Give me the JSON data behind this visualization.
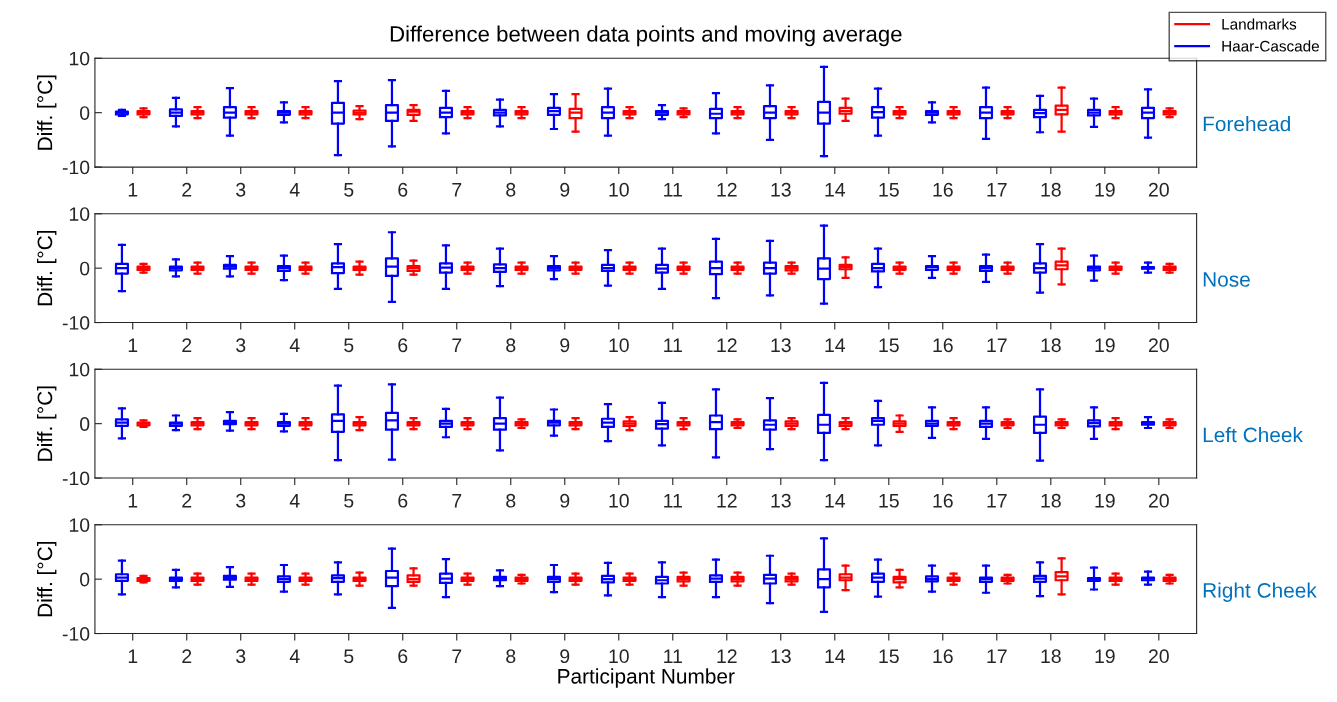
{
  "chart_data": [
    {
      "type": "box",
      "title": "Difference between data points and moving average",
      "ylabel": "Diff. [°C]",
      "annotations": [
        "Forehead"
      ],
      "categories": [
        "1",
        "2",
        "3",
        "4",
        "5",
        "6",
        "7",
        "8",
        "9",
        "10",
        "11",
        "12",
        "13",
        "14",
        "15",
        "16",
        "17",
        "18",
        "19",
        "20"
      ],
      "ylim": [
        -10,
        10
      ],
      "yticks": [
        -10,
        0,
        10
      ],
      "grid": false,
      "legend": "top right",
      "series": [
        {
          "name": "Haar-Cascade",
          "color": "#0000ff",
          "boxes": [
            {
              "low": -0.6,
              "q1": -0.3,
              "median": 0,
              "q3": 0.2,
              "high": 0.5
            },
            {
              "low": -2.5,
              "q1": -0.6,
              "median": 0,
              "q3": 0.6,
              "high": 2.7
            },
            {
              "low": -4.2,
              "q1": -0.9,
              "median": 0,
              "q3": 1.0,
              "high": 4.5
            },
            {
              "low": -1.8,
              "q1": -0.4,
              "median": 0,
              "q3": 0.3,
              "high": 1.9
            },
            {
              "low": -7.8,
              "q1": -2.0,
              "median": 0,
              "q3": 1.8,
              "high": 5.8
            },
            {
              "low": -6.2,
              "q1": -1.5,
              "median": 0,
              "q3": 1.4,
              "high": 6.0
            },
            {
              "low": -3.8,
              "q1": -0.8,
              "median": 0,
              "q3": 0.9,
              "high": 4.0
            },
            {
              "low": -2.5,
              "q1": -0.5,
              "median": 0,
              "q3": 0.5,
              "high": 2.4
            },
            {
              "low": -3.0,
              "q1": -0.4,
              "median": 0.3,
              "q3": 0.9,
              "high": 3.4
            },
            {
              "low": -4.2,
              "q1": -1.0,
              "median": 0,
              "q3": 1.0,
              "high": 4.4
            },
            {
              "low": -1.2,
              "q1": -0.4,
              "median": 0,
              "q3": 0.3,
              "high": 1.4
            },
            {
              "low": -3.8,
              "q1": -1.0,
              "median": -0.2,
              "q3": 0.7,
              "high": 3.6
            },
            {
              "low": -5.0,
              "q1": -1.0,
              "median": 0,
              "q3": 1.2,
              "high": 5.0
            },
            {
              "low": -8.0,
              "q1": -2.0,
              "median": 0,
              "q3": 2.0,
              "high": 8.4
            },
            {
              "low": -4.2,
              "q1": -0.9,
              "median": 0.1,
              "q3": 1.0,
              "high": 4.4
            },
            {
              "low": -1.8,
              "q1": -0.4,
              "median": 0,
              "q3": 0.3,
              "high": 1.9
            },
            {
              "low": -4.8,
              "q1": -1.0,
              "median": 0,
              "q3": 1.0,
              "high": 4.6
            },
            {
              "low": -3.6,
              "q1": -0.8,
              "median": -0.1,
              "q3": 0.5,
              "high": 3.1
            },
            {
              "low": -2.6,
              "q1": -0.5,
              "median": 0,
              "q3": 0.5,
              "high": 2.6
            },
            {
              "low": -4.6,
              "q1": -1.0,
              "median": 0,
              "q3": 0.9,
              "high": 4.3
            }
          ]
        },
        {
          "name": "Landmarks",
          "color": "#ff0000",
          "boxes": [
            {
              "low": -0.8,
              "q1": -0.3,
              "median": 0,
              "q3": 0.3,
              "high": 0.8
            },
            {
              "low": -1,
              "q1": -0.3,
              "median": 0,
              "q3": 0.3,
              "high": 1
            },
            {
              "low": -1,
              "q1": -0.3,
              "median": 0,
              "q3": 0.3,
              "high": 1
            },
            {
              "low": -1,
              "q1": -0.3,
              "median": 0,
              "q3": 0.3,
              "high": 1
            },
            {
              "low": -1.2,
              "q1": -0.3,
              "median": 0,
              "q3": 0.4,
              "high": 1.2
            },
            {
              "low": -1.5,
              "q1": -0.4,
              "median": 0.2,
              "q3": 0.5,
              "high": 1.4
            },
            {
              "low": -1,
              "q1": -0.3,
              "median": 0,
              "q3": 0.3,
              "high": 1
            },
            {
              "low": -1,
              "q1": -0.3,
              "median": 0,
              "q3": 0.3,
              "high": 1
            },
            {
              "low": -3.5,
              "q1": -1.0,
              "median": 0,
              "q3": 0.7,
              "high": 3.4
            },
            {
              "low": -1,
              "q1": -0.3,
              "median": 0,
              "q3": 0.3,
              "high": 1
            },
            {
              "low": -0.8,
              "q1": -0.3,
              "median": 0,
              "q3": 0.3,
              "high": 0.8
            },
            {
              "low": -1,
              "q1": -0.3,
              "median": 0,
              "q3": 0.3,
              "high": 1
            },
            {
              "low": -1,
              "q1": -0.3,
              "median": 0,
              "q3": 0.3,
              "high": 1
            },
            {
              "low": -1.5,
              "q1": -0.2,
              "median": 0.3,
              "q3": 0.9,
              "high": 2.6
            },
            {
              "low": -1,
              "q1": -0.3,
              "median": 0,
              "q3": 0.3,
              "high": 1
            },
            {
              "low": -1,
              "q1": -0.3,
              "median": 0,
              "q3": 0.3,
              "high": 1
            },
            {
              "low": -1,
              "q1": -0.3,
              "median": 0,
              "q3": 0.3,
              "high": 1
            },
            {
              "low": -3.5,
              "q1": -0.3,
              "median": 0.5,
              "q3": 1.3,
              "high": 4.6
            },
            {
              "low": -1,
              "q1": -0.3,
              "median": 0,
              "q3": 0.3,
              "high": 1
            },
            {
              "low": -0.8,
              "q1": -0.3,
              "median": 0,
              "q3": 0.3,
              "high": 0.8
            }
          ]
        }
      ]
    },
    {
      "type": "box",
      "ylabel": "Diff. [°C]",
      "annotations": [
        "Nose"
      ],
      "categories": [
        "1",
        "2",
        "3",
        "4",
        "5",
        "6",
        "7",
        "8",
        "9",
        "10",
        "11",
        "12",
        "13",
        "14",
        "15",
        "16",
        "17",
        "18",
        "19",
        "20"
      ],
      "ylim": [
        -10,
        10
      ],
      "yticks": [
        -10,
        0,
        10
      ],
      "grid": false,
      "series": [
        {
          "color": "#0000ff",
          "boxes": [
            {
              "low": -4.2,
              "q1": -1,
              "median": 0,
              "q3": 0.8,
              "high": 4.3
            },
            {
              "low": -1.5,
              "q1": -0.4,
              "median": 0,
              "q3": 0.3,
              "high": 1.6
            },
            {
              "low": -1.5,
              "q1": -0.1,
              "median": 0.3,
              "q3": 0.6,
              "high": 2.2
            },
            {
              "low": -2.2,
              "q1": -0.5,
              "median": 0,
              "q3": 0.4,
              "high": 2.3
            },
            {
              "low": -3.8,
              "q1": -0.9,
              "median": 0.2,
              "q3": 0.9,
              "high": 4.4
            },
            {
              "low": -6.2,
              "q1": -1.4,
              "median": 0.3,
              "q3": 1.8,
              "high": 6.6
            },
            {
              "low": -3.8,
              "q1": -0.8,
              "median": 0.1,
              "q3": 0.9,
              "high": 4.2
            },
            {
              "low": -3.3,
              "q1": -0.7,
              "median": 0,
              "q3": 0.7,
              "high": 3.6
            },
            {
              "low": -2.0,
              "q1": -0.4,
              "median": 0,
              "q3": 0.4,
              "high": 2.2
            },
            {
              "low": -3.2,
              "q1": -0.5,
              "median": 0,
              "q3": 0.6,
              "high": 3.3
            },
            {
              "low": -3.8,
              "q1": -0.8,
              "median": -0.1,
              "q3": 0.6,
              "high": 3.6
            },
            {
              "low": -5.5,
              "q1": -1.1,
              "median": 0,
              "q3": 1.2,
              "high": 5.4
            },
            {
              "low": -5.0,
              "q1": -1.0,
              "median": 0,
              "q3": 1.0,
              "high": 5.0
            },
            {
              "low": -6.5,
              "q1": -2.0,
              "median": -0.1,
              "q3": 1.8,
              "high": 7.8
            },
            {
              "low": -3.5,
              "q1": -0.6,
              "median": 0,
              "q3": 0.8,
              "high": 3.6
            },
            {
              "low": -1.8,
              "q1": -0.3,
              "median": 0.2,
              "q3": 0.4,
              "high": 2.2
            },
            {
              "low": -2.5,
              "q1": -0.5,
              "median": 0,
              "q3": 0.4,
              "high": 2.5
            },
            {
              "low": -4.5,
              "q1": -0.8,
              "median": 0,
              "q3": 0.9,
              "high": 4.4
            },
            {
              "low": -2.3,
              "q1": -0.4,
              "median": 0,
              "q3": 0.3,
              "high": 2.3
            },
            {
              "low": -0.8,
              "q1": -0.1,
              "median": 0,
              "q3": 0.2,
              "high": 1.0
            }
          ]
        },
        {
          "color": "#ff0000",
          "boxes": [
            {
              "low": -0.8,
              "q1": -0.3,
              "median": 0,
              "q3": 0.3,
              "high": 0.8
            },
            {
              "low": -1,
              "q1": -0.3,
              "median": 0,
              "q3": 0.3,
              "high": 1
            },
            {
              "low": -1,
              "q1": -0.3,
              "median": 0,
              "q3": 0.3,
              "high": 1
            },
            {
              "low": -1,
              "q1": -0.3,
              "median": 0,
              "q3": 0.3,
              "high": 1
            },
            {
              "low": -1.2,
              "q1": -0.3,
              "median": 0,
              "q3": 0.3,
              "high": 1.2
            },
            {
              "low": -1.2,
              "q1": -0.5,
              "median": 0,
              "q3": 0.4,
              "high": 1.4
            },
            {
              "low": -1,
              "q1": -0.3,
              "median": 0,
              "q3": 0.3,
              "high": 1
            },
            {
              "low": -1,
              "q1": -0.3,
              "median": 0,
              "q3": 0.3,
              "high": 1
            },
            {
              "low": -1,
              "q1": -0.3,
              "median": 0,
              "q3": 0.3,
              "high": 1
            },
            {
              "low": -1,
              "q1": -0.3,
              "median": 0,
              "q3": 0.3,
              "high": 1
            },
            {
              "low": -1,
              "q1": -0.3,
              "median": 0,
              "q3": 0.3,
              "high": 1
            },
            {
              "low": -1,
              "q1": -0.3,
              "median": 0,
              "q3": 0.3,
              "high": 1
            },
            {
              "low": -1,
              "q1": -0.4,
              "median": 0,
              "q3": 0.4,
              "high": 1
            },
            {
              "low": -1.8,
              "q1": -0.2,
              "median": 0.2,
              "q3": 0.6,
              "high": 2.0
            },
            {
              "low": -1,
              "q1": -0.3,
              "median": 0,
              "q3": 0.3,
              "high": 1
            },
            {
              "low": -1,
              "q1": -0.3,
              "median": 0,
              "q3": 0.3,
              "high": 1
            },
            {
              "low": -1,
              "q1": -0.3,
              "median": 0,
              "q3": 0.3,
              "high": 1
            },
            {
              "low": -3.0,
              "q1": -0.2,
              "median": 0.5,
              "q3": 1.2,
              "high": 3.6
            },
            {
              "low": -1,
              "q1": -0.3,
              "median": 0,
              "q3": 0.3,
              "high": 1
            },
            {
              "low": -0.8,
              "q1": -0.3,
              "median": 0,
              "q3": 0.3,
              "high": 0.8
            }
          ]
        }
      ]
    },
    {
      "type": "box",
      "ylabel": "Diff. [°C]",
      "annotations": [
        "Left Cheek"
      ],
      "categories": [
        "1",
        "2",
        "3",
        "4",
        "5",
        "6",
        "7",
        "8",
        "9",
        "10",
        "11",
        "12",
        "13",
        "14",
        "15",
        "16",
        "17",
        "18",
        "19",
        "20"
      ],
      "ylim": [
        -10,
        10
      ],
      "yticks": [
        -10,
        0,
        10
      ],
      "grid": false,
      "series": [
        {
          "color": "#0000ff",
          "boxes": [
            {
              "low": -2.7,
              "q1": -0.4,
              "median": 0.2,
              "q3": 0.8,
              "high": 2.8
            },
            {
              "low": -1.2,
              "q1": -0.4,
              "median": 0,
              "q3": 0.2,
              "high": 1.5
            },
            {
              "low": -1.3,
              "q1": -0.1,
              "median": 0.3,
              "q3": 0.5,
              "high": 2.1
            },
            {
              "low": -1.4,
              "q1": -0.4,
              "median": 0,
              "q3": 0.3,
              "high": 1.8
            },
            {
              "low": -6.7,
              "q1": -1.5,
              "median": 0.5,
              "q3": 1.7,
              "high": 7.0
            },
            {
              "low": -6.6,
              "q1": -1.1,
              "median": 0.6,
              "q3": 2.0,
              "high": 7.2
            },
            {
              "low": -2.5,
              "q1": -0.6,
              "median": 0,
              "q3": 0.5,
              "high": 2.7
            },
            {
              "low": -4.9,
              "q1": -1.1,
              "median": 0,
              "q3": 1.0,
              "high": 4.8
            },
            {
              "low": -2.2,
              "q1": -0.3,
              "median": 0.2,
              "q3": 0.5,
              "high": 2.6
            },
            {
              "low": -3.2,
              "q1": -0.6,
              "median": 0.2,
              "q3": 0.9,
              "high": 3.6
            },
            {
              "low": -4.0,
              "q1": -0.9,
              "median": -0.1,
              "q3": 0.5,
              "high": 3.8
            },
            {
              "low": -6.2,
              "q1": -1.0,
              "median": 0.3,
              "q3": 1.5,
              "high": 6.3
            },
            {
              "low": -4.7,
              "q1": -1.1,
              "median": -0.2,
              "q3": 0.6,
              "high": 4.7
            },
            {
              "low": -6.7,
              "q1": -1.7,
              "median": -0.2,
              "q3": 1.6,
              "high": 7.5
            },
            {
              "low": -4.0,
              "q1": -0.2,
              "median": 0.5,
              "q3": 1.0,
              "high": 4.2
            },
            {
              "low": -2.6,
              "q1": -0.4,
              "median": 0,
              "q3": 0.5,
              "high": 3.0
            },
            {
              "low": -2.8,
              "q1": -0.6,
              "median": 0,
              "q3": 0.5,
              "high": 3.0
            },
            {
              "low": -6.8,
              "q1": -1.7,
              "median": -0.2,
              "q3": 1.3,
              "high": 6.3
            },
            {
              "low": -2.8,
              "q1": -0.5,
              "median": 0.1,
              "q3": 0.6,
              "high": 3.0
            },
            {
              "low": -0.8,
              "q1": -0.2,
              "median": 0.1,
              "q3": 0.3,
              "high": 1.2
            }
          ]
        },
        {
          "color": "#ff0000",
          "boxes": [
            {
              "low": -0.6,
              "q1": -0.3,
              "median": 0,
              "q3": 0.2,
              "high": 0.6
            },
            {
              "low": -1,
              "q1": -0.3,
              "median": 0,
              "q3": 0.3,
              "high": 1
            },
            {
              "low": -1,
              "q1": -0.3,
              "median": 0,
              "q3": 0.3,
              "high": 1
            },
            {
              "low": -1,
              "q1": -0.3,
              "median": 0,
              "q3": 0.3,
              "high": 1
            },
            {
              "low": -1.2,
              "q1": -0.3,
              "median": 0,
              "q3": 0.3,
              "high": 1.2
            },
            {
              "low": -1,
              "q1": -0.3,
              "median": 0,
              "q3": 0.3,
              "high": 1
            },
            {
              "low": -1,
              "q1": -0.3,
              "median": 0,
              "q3": 0.3,
              "high": 1
            },
            {
              "low": -0.8,
              "q1": -0.3,
              "median": 0,
              "q3": 0.3,
              "high": 0.8
            },
            {
              "low": -1,
              "q1": -0.3,
              "median": 0,
              "q3": 0.3,
              "high": 1
            },
            {
              "low": -1.2,
              "q1": -0.4,
              "median": 0,
              "q3": 0.4,
              "high": 1.2
            },
            {
              "low": -1,
              "q1": -0.3,
              "median": 0,
              "q3": 0.3,
              "high": 1
            },
            {
              "low": -0.8,
              "q1": -0.3,
              "median": 0,
              "q3": 0.3,
              "high": 0.8
            },
            {
              "low": -1,
              "q1": -0.4,
              "median": 0,
              "q3": 0.4,
              "high": 1
            },
            {
              "low": -1,
              "q1": -0.4,
              "median": 0,
              "q3": 0.3,
              "high": 1
            },
            {
              "low": -1.5,
              "q1": -0.4,
              "median": 0,
              "q3": 0.4,
              "high": 1.5
            },
            {
              "low": -1,
              "q1": -0.3,
              "median": 0,
              "q3": 0.3,
              "high": 1
            },
            {
              "low": -0.8,
              "q1": -0.3,
              "median": 0,
              "q3": 0.3,
              "high": 0.8
            },
            {
              "low": -0.8,
              "q1": -0.3,
              "median": 0,
              "q3": 0.3,
              "high": 0.8
            },
            {
              "low": -1,
              "q1": -0.3,
              "median": 0,
              "q3": 0.3,
              "high": 1
            },
            {
              "low": -0.8,
              "q1": -0.3,
              "median": 0,
              "q3": 0.3,
              "high": 0.8
            }
          ]
        }
      ]
    },
    {
      "type": "box",
      "ylabel": "Diff. [°C]",
      "xlabel": "Participant Number",
      "annotations": [
        "Right Cheek"
      ],
      "categories": [
        "1",
        "2",
        "3",
        "4",
        "5",
        "6",
        "7",
        "8",
        "9",
        "10",
        "11",
        "12",
        "13",
        "14",
        "15",
        "16",
        "17",
        "18",
        "19",
        "20"
      ],
      "ylim": [
        -10,
        10
      ],
      "yticks": [
        -10,
        0,
        10
      ],
      "grid": false,
      "series": [
        {
          "color": "#0000ff",
          "boxes": [
            {
              "low": -2.8,
              "q1": -0.3,
              "median": 0.3,
              "q3": 0.9,
              "high": 3.4
            },
            {
              "low": -1.5,
              "q1": -0.3,
              "median": 0,
              "q3": 0.3,
              "high": 1.7
            },
            {
              "low": -1.4,
              "q1": -0.1,
              "median": 0.2,
              "q3": 0.6,
              "high": 2.2
            },
            {
              "low": -2.3,
              "q1": -0.5,
              "median": 0,
              "q3": 0.5,
              "high": 2.6
            },
            {
              "low": -2.8,
              "q1": -0.5,
              "median": 0.2,
              "q3": 0.7,
              "high": 3.1
            },
            {
              "low": -5.3,
              "q1": -1.3,
              "median": 0.3,
              "q3": 1.5,
              "high": 5.6
            },
            {
              "low": -3.3,
              "q1": -0.7,
              "median": 0.1,
              "q3": 1.0,
              "high": 3.7
            },
            {
              "low": -1.3,
              "q1": -0.2,
              "median": 0.1,
              "q3": 0.4,
              "high": 1.6
            },
            {
              "low": -2.4,
              "q1": -0.5,
              "median": 0,
              "q3": 0.4,
              "high": 2.6
            },
            {
              "low": -3.0,
              "q1": -0.6,
              "median": 0,
              "q3": 0.6,
              "high": 3.0
            },
            {
              "low": -3.3,
              "q1": -0.8,
              "median": -0.2,
              "q3": 0.4,
              "high": 3.1
            },
            {
              "low": -3.3,
              "q1": -0.5,
              "median": 0.1,
              "q3": 0.7,
              "high": 3.6
            },
            {
              "low": -4.4,
              "q1": -0.8,
              "median": 0.1,
              "q3": 0.8,
              "high": 4.3
            },
            {
              "low": -6.0,
              "q1": -1.5,
              "median": 0,
              "q3": 1.8,
              "high": 7.5
            },
            {
              "low": -3.2,
              "q1": -0.5,
              "median": 0.3,
              "q3": 1.0,
              "high": 3.6
            },
            {
              "low": -2.3,
              "q1": -0.4,
              "median": 0,
              "q3": 0.5,
              "high": 2.5
            },
            {
              "low": -2.5,
              "q1": -0.5,
              "median": 0,
              "q3": 0.3,
              "high": 2.5
            },
            {
              "low": -3.1,
              "q1": -0.5,
              "median": 0.1,
              "q3": 0.6,
              "high": 3.1
            },
            {
              "low": -1.9,
              "q1": -0.3,
              "median": 0,
              "q3": 0.2,
              "high": 2.1
            },
            {
              "low": -1.0,
              "q1": -0.2,
              "median": 0.1,
              "q3": 0.3,
              "high": 1.4
            }
          ]
        },
        {
          "color": "#ff0000",
          "boxes": [
            {
              "low": -0.6,
              "q1": -0.3,
              "median": 0,
              "q3": 0.2,
              "high": 0.6
            },
            {
              "low": -1,
              "q1": -0.3,
              "median": 0,
              "q3": 0.3,
              "high": 1
            },
            {
              "low": -1,
              "q1": -0.3,
              "median": 0,
              "q3": 0.3,
              "high": 1
            },
            {
              "low": -1,
              "q1": -0.3,
              "median": 0,
              "q3": 0.3,
              "high": 1
            },
            {
              "low": -1.2,
              "q1": -0.3,
              "median": 0,
              "q3": 0.3,
              "high": 1.2
            },
            {
              "low": -1.2,
              "q1": -0.5,
              "median": 0,
              "q3": 0.7,
              "high": 2.0
            },
            {
              "low": -1,
              "q1": -0.3,
              "median": 0,
              "q3": 0.3,
              "high": 1
            },
            {
              "low": -0.8,
              "q1": -0.3,
              "median": 0,
              "q3": 0.3,
              "high": 0.8
            },
            {
              "low": -1,
              "q1": -0.3,
              "median": 0,
              "q3": 0.3,
              "high": 1
            },
            {
              "low": -1,
              "q1": -0.3,
              "median": 0,
              "q3": 0.3,
              "high": 1
            },
            {
              "low": -1.2,
              "q1": -0.4,
              "median": 0,
              "q3": 0.4,
              "high": 1.2
            },
            {
              "low": -1.2,
              "q1": -0.4,
              "median": 0,
              "q3": 0.4,
              "high": 1.2
            },
            {
              "low": -1,
              "q1": -0.4,
              "median": 0,
              "q3": 0.4,
              "high": 1
            },
            {
              "low": -2.0,
              "q1": -0.2,
              "median": 0.3,
              "q3": 0.9,
              "high": 2.5
            },
            {
              "low": -1.5,
              "q1": -0.6,
              "median": 0,
              "q3": 0.4,
              "high": 1.7
            },
            {
              "low": -1,
              "q1": -0.3,
              "median": 0,
              "q3": 0.3,
              "high": 1
            },
            {
              "low": -0.8,
              "q1": -0.3,
              "median": 0,
              "q3": 0.3,
              "high": 0.8
            },
            {
              "low": -2.8,
              "q1": -0.2,
              "median": 0.5,
              "q3": 1.3,
              "high": 3.8
            },
            {
              "low": -1,
              "q1": -0.3,
              "median": 0,
              "q3": 0.3,
              "high": 1
            },
            {
              "low": -0.8,
              "q1": -0.3,
              "median": 0,
              "q3": 0.3,
              "high": 0.8
            }
          ]
        }
      ]
    }
  ]
}
